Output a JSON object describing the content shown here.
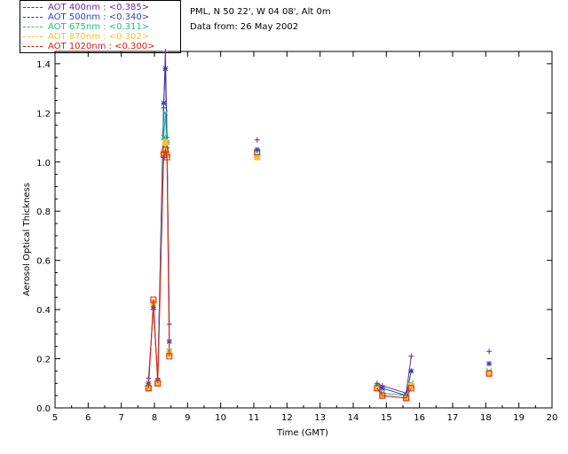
{
  "legend": [
    {
      "label": "AOT  400nm : <0.385>",
      "color": "#6a2a9e"
    },
    {
      "label": "AOT  500nm : <0.340>",
      "color": "#2a3fbd"
    },
    {
      "label": "AOT  675nm : <0.311>",
      "color": "#1fbf7a"
    },
    {
      "label": "AOT  870nm : <0.302>",
      "color": "#f2c230"
    },
    {
      "label": "AOT 1020nm : <0.300>",
      "color": "#d91a1a"
    }
  ],
  "info": {
    "site": "PML, N 50 22', W 04 08', Alt 0m",
    "date": "Data from: 26 May 2002"
  },
  "chart_data": {
    "type": "line",
    "xlabel": "Time (GMT)",
    "ylabel": "Aerosol Optical Thickness",
    "xlim": [
      5,
      20
    ],
    "ylim": [
      0,
      1.45
    ],
    "xticks": [
      5,
      6,
      7,
      8,
      9,
      10,
      11,
      12,
      13,
      14,
      15,
      16,
      17,
      18,
      19,
      20
    ],
    "yticks": [
      0.0,
      0.2,
      0.4,
      0.6,
      0.8,
      1.0,
      1.2,
      1.4
    ],
    "grid": false,
    "legend_position": "top-left",
    "x": [
      7.82,
      7.97,
      8.1,
      8.28,
      8.33,
      8.38,
      8.45,
      11.1,
      14.72,
      14.88,
      15.6,
      15.75,
      18.1
    ],
    "series": [
      {
        "name": "AOT 400nm",
        "color": "#6a2a9e",
        "marker": "+",
        "values": [
          0.12,
          0.4,
          0.12,
          1.22,
          1.45,
          1.1,
          0.34,
          1.09,
          0.1,
          0.09,
          0.06,
          0.21,
          0.23
        ]
      },
      {
        "name": "AOT 500nm",
        "color": "#2a3fbd",
        "marker": "*",
        "values": [
          0.1,
          0.41,
          0.11,
          1.24,
          1.38,
          1.08,
          0.27,
          1.05,
          0.09,
          0.08,
          0.05,
          0.15,
          0.18
        ]
      },
      {
        "name": "AOT 675nm",
        "color": "#1fbf7a",
        "marker": "x",
        "values": [
          0.09,
          0.42,
          0.1,
          1.1,
          1.2,
          1.05,
          0.23,
          1.04,
          0.09,
          0.06,
          0.05,
          0.1,
          0.15
        ]
      },
      {
        "name": "AOT 870nm",
        "color": "#f2c230",
        "marker": "diamond",
        "values": [
          0.08,
          0.43,
          0.1,
          1.04,
          1.08,
          1.03,
          0.22,
          1.02,
          0.08,
          0.05,
          0.04,
          0.09,
          0.14
        ]
      },
      {
        "name": "AOT 1020nm",
        "color": "#d91a1a",
        "marker": "square",
        "values": [
          0.08,
          0.44,
          0.1,
          1.03,
          1.05,
          1.02,
          0.21,
          1.04,
          0.08,
          0.05,
          0.04,
          0.08,
          0.14
        ]
      }
    ]
  }
}
